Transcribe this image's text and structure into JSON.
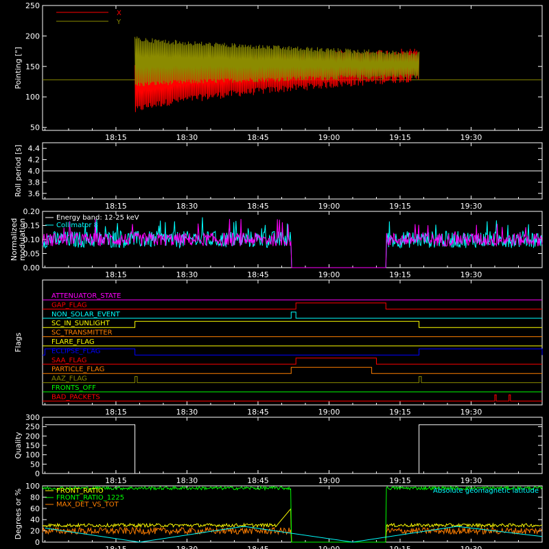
{
  "time_ticks": [
    "18:15",
    "18:30",
    "18:45",
    "19:00",
    "19:15",
    "19:30"
  ],
  "colors": {
    "x_red": "#ff0000",
    "y_olive": "#8b8b00",
    "magenta": "#ff00ff",
    "cyan": "#00ffff",
    "white": "#ffffff",
    "green": "#00ff00",
    "yellow": "#ffff00",
    "orange": "#ff7f00",
    "blue": "#0000ff",
    "red_flag": "#ff0000"
  },
  "chart_data": [
    {
      "type": "line",
      "panel": "pointing",
      "ylabel": "Pointing [\"]",
      "ylim": [
        45,
        250
      ],
      "yticks": [
        "50",
        "100",
        "150",
        "200",
        "250"
      ],
      "legend": [
        {
          "name": "X",
          "color": "#ff0000"
        },
        {
          "name": "Y",
          "color": "#8b8b00"
        }
      ],
      "baseline": 128,
      "series": [
        {
          "name": "X",
          "start": "18:19",
          "end": "19:19",
          "upper_start": 160,
          "upper_end": 180,
          "lower_start": 70,
          "lower_end": 125
        },
        {
          "name": "Y",
          "start": "18:19",
          "end": "19:19",
          "upper_start": 200,
          "upper_end": 175,
          "lower_start": 115,
          "lower_end": 130
        }
      ]
    },
    {
      "type": "line",
      "panel": "roll_period",
      "ylabel": "Roll period [s]",
      "ylim": [
        3.5,
        4.5
      ],
      "yticks": [
        "3.6",
        "3.8",
        "4.0",
        "4.2",
        "4.4"
      ],
      "series": [
        {
          "name": "roll",
          "value": 4.0
        }
      ]
    },
    {
      "type": "line",
      "panel": "modulation",
      "ylabel": "Normalized modulation",
      "ylim": [
        0.0,
        0.2
      ],
      "yticks": [
        "0.00",
        "0.05",
        "0.10",
        "0.15",
        "0.20"
      ],
      "legend": [
        {
          "name": "Energy band: 12-25 keV",
          "color": "#ffffff"
        },
        {
          "name": "Collimator 8",
          "color": "#00ffff"
        }
      ],
      "gap": [
        "18:52",
        "19:12"
      ],
      "series": [
        {
          "name": "Collimator 8",
          "mean": 0.1,
          "spread": 0.03
        }
      ]
    },
    {
      "type": "line",
      "panel": "flags",
      "ylabel": "Flags",
      "series": [
        {
          "name": "ATTENUATOR_STATE",
          "color": "#ff00ff",
          "highs": []
        },
        {
          "name": "GAP_FLAG",
          "color": "#ff0000",
          "highs": [
            [
              "18:53",
              "19:12"
            ]
          ]
        },
        {
          "name": "NON_SOLAR_EVENT",
          "color": "#00ffff",
          "highs": [
            [
              "18:52",
              "18:53"
            ]
          ]
        },
        {
          "name": "SC_IN_SUNLIGHT",
          "color": "#ffff00",
          "highs": [
            [
              "18:19",
              "19:19"
            ]
          ]
        },
        {
          "name": "SC_TRANSMITTER",
          "color": "#ff7f00",
          "highs": []
        },
        {
          "name": "FLARE_FLAG",
          "color": "#ffff00",
          "highs": []
        },
        {
          "name": "ECLIPSE_FLAG",
          "color": "#0000ff",
          "highs": [
            [
              "18:00",
              "18:19"
            ],
            [
              "19:19",
              "19:45"
            ]
          ]
        },
        {
          "name": "SAA_FLAG",
          "color": "#ff0000",
          "highs": [
            [
              "18:53",
              "19:10"
            ]
          ]
        },
        {
          "name": "PARTICLE_FLAG",
          "color": "#ff7f00",
          "highs": [
            [
              "18:52",
              "19:09"
            ]
          ]
        },
        {
          "name": "AAZ_FLAG",
          "color": "#8b8b00",
          "highs": [
            [
              "18:19",
              "18:19.5"
            ],
            [
              "19:19",
              "19:19.5"
            ]
          ]
        },
        {
          "name": "FRONTS_OFF",
          "color": "#00ff00",
          "highs": []
        },
        {
          "name": "BAD_PACKETS",
          "color": "#ff0000",
          "highs": [
            [
              "19:35",
              "19:35.3"
            ],
            [
              "19:38",
              "19:38.3"
            ]
          ]
        }
      ]
    },
    {
      "type": "line",
      "panel": "quality",
      "ylabel": "Quality",
      "ylim": [
        0,
        300
      ],
      "yticks": [
        "0",
        "50",
        "100",
        "150",
        "200",
        "250",
        "300"
      ],
      "series": [
        {
          "name": "Quality",
          "levels": [
            [
              "18:00",
              "18:19",
              260
            ],
            [
              "18:19",
              "19:19",
              0
            ],
            [
              "19:19",
              "19:45",
              260
            ]
          ]
        }
      ]
    },
    {
      "type": "line",
      "panel": "degrees",
      "ylabel": "Degrees or %",
      "ylim": [
        0,
        100
      ],
      "yticks": [
        "0",
        "20",
        "40",
        "60",
        "80",
        "100"
      ],
      "legend": [
        {
          "name": "FRONT_RATIO",
          "color": "#ffff00"
        },
        {
          "name": "FRONT_RATIO_1225",
          "color": "#00ff00"
        },
        {
          "name": "MAX_DET_VS_TOT",
          "color": "#ff7f00"
        }
      ],
      "annotation": "Absolute geomagnetic latitude",
      "gap": [
        "18:52",
        "19:12"
      ],
      "series": [
        {
          "name": "FRONT_RATIO_1225",
          "mean": 96
        },
        {
          "name": "FRONT_RATIO",
          "mean": 30
        },
        {
          "name": "MAX_DET_VS_TOT",
          "mean": 20
        },
        {
          "name": "Absolute geomagnetic latitude",
          "vertices": [
            [
              "18:00",
              25
            ],
            [
              "18:20",
              0
            ],
            [
              "18:42",
              28
            ],
            [
              "19:05",
              0
            ],
            [
              "19:27",
              28
            ],
            [
              "19:45",
              10
            ]
          ]
        }
      ]
    }
  ]
}
